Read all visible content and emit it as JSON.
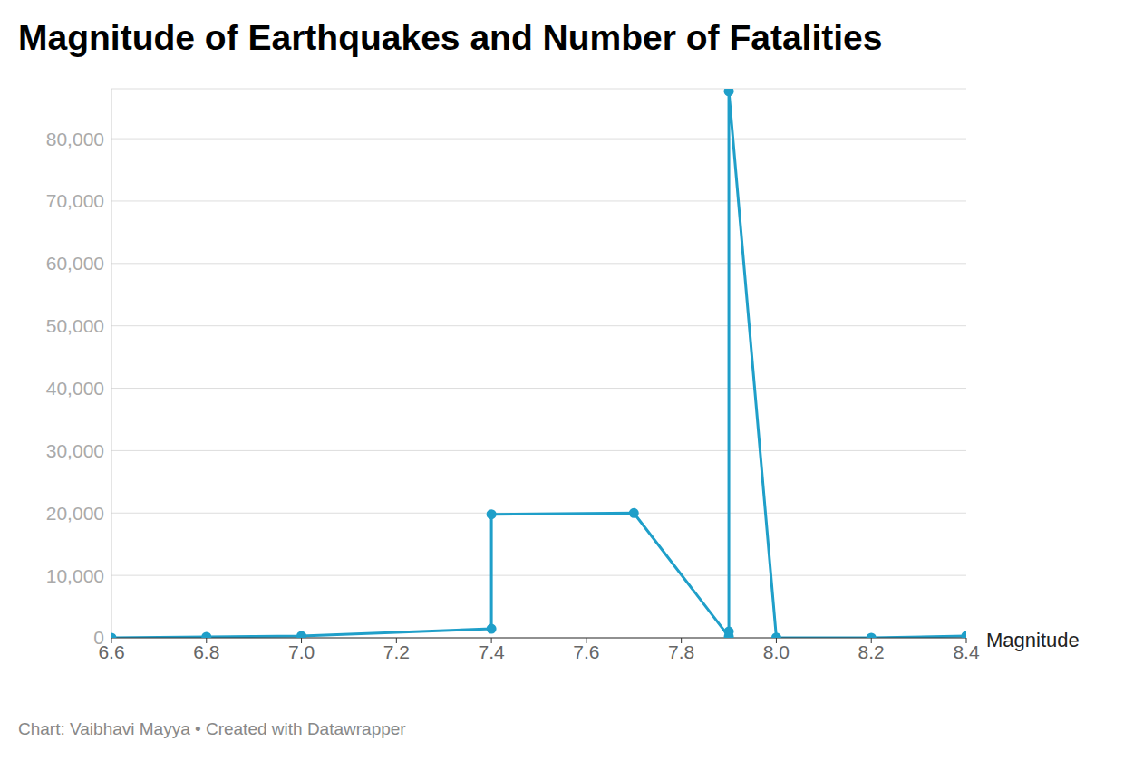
{
  "chart_data": {
    "type": "line",
    "title": "Magnitude of Earthquakes and Number of Fatalities",
    "x_label": "Magnitude",
    "source": "Chart: Vaibhavi Mayya • Created with Datawrapper",
    "x": [
      6.6,
      6.8,
      7.0,
      7.4,
      7.4,
      7.7,
      7.9,
      7.9,
      7.9,
      8.0,
      8.2,
      8.4
    ],
    "values": [
      0,
      150,
      300,
      1450,
      19800,
      20000,
      200,
      1000,
      87600,
      50,
      0,
      300
    ],
    "color": "#1f9fc9",
    "marker": "circle",
    "xlim": [
      6.6,
      8.4
    ],
    "xticks": [
      6.6,
      6.8,
      {
        "value": 7.0,
        "label": "7.0"
      },
      7.2,
      7.4,
      7.6,
      7.8,
      {
        "value": 8.0,
        "label": "8.0"
      },
      8.2,
      8.4
    ],
    "ylim": [
      0,
      88000
    ],
    "yticks": [
      0,
      {
        "value": 10000,
        "label": "10,000"
      },
      {
        "value": 20000,
        "label": "20,000"
      },
      {
        "value": 30000,
        "label": "30,000"
      },
      {
        "value": 40000,
        "label": "40,000"
      },
      {
        "value": 50000,
        "label": "50,000"
      },
      {
        "value": 60000,
        "label": "60,000"
      },
      {
        "value": 70000,
        "label": "70,000"
      },
      {
        "value": 80000,
        "label": "80,000"
      }
    ],
    "grid": true
  }
}
